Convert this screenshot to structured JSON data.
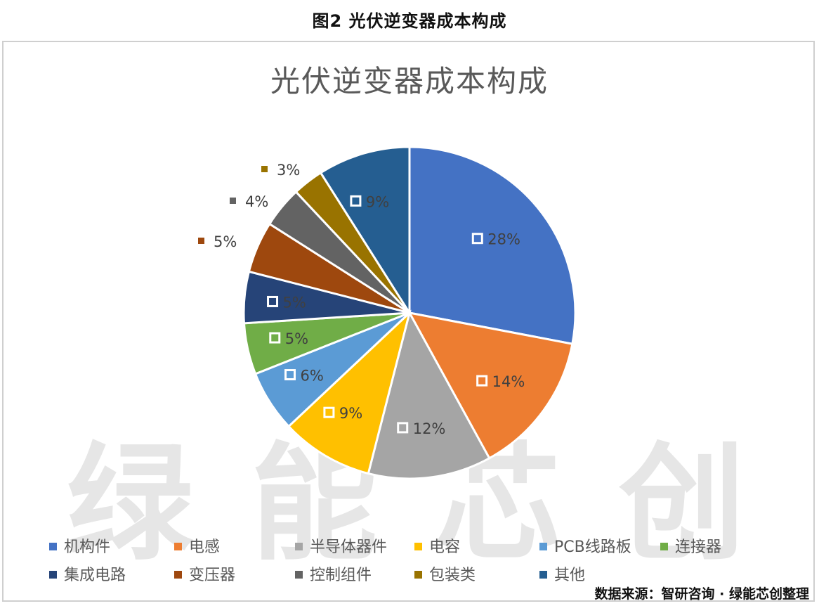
{
  "caption": "图2 光伏逆变器成本构成",
  "watermark": "绿能芯创",
  "source": "数据来源：智研咨询 · 绿能芯创整理",
  "chart_data": {
    "type": "pie",
    "title": "光伏逆变器成本构成",
    "legend_position": "bottom",
    "slices": [
      {
        "label": "机构件",
        "value": 28,
        "display": "28%",
        "color": "#4472C4"
      },
      {
        "label": "电感",
        "value": 14,
        "display": "14%",
        "color": "#ED7D31"
      },
      {
        "label": "半导体器件",
        "value": 12,
        "display": "12%",
        "color": "#A5A5A5"
      },
      {
        "label": "电容",
        "value": 9,
        "display": "9%",
        "color": "#FFC000"
      },
      {
        "label": "PCB线路板",
        "value": 6,
        "display": "6%",
        "color": "#5B9BD5"
      },
      {
        "label": "连接器",
        "value": 5,
        "display": "5%",
        "color": "#70AD47"
      },
      {
        "label": "集成电路",
        "value": 5,
        "display": "5%",
        "color": "#264478"
      },
      {
        "label": "变压器",
        "value": 5,
        "display": "5%",
        "color": "#9E480E"
      },
      {
        "label": "控制组件",
        "value": 4,
        "display": "4%",
        "color": "#636363"
      },
      {
        "label": "包装类",
        "value": 3,
        "display": "3%",
        "color": "#997300"
      },
      {
        "label": "其他",
        "value": 9,
        "display": "9%",
        "color": "#255E91"
      }
    ]
  }
}
